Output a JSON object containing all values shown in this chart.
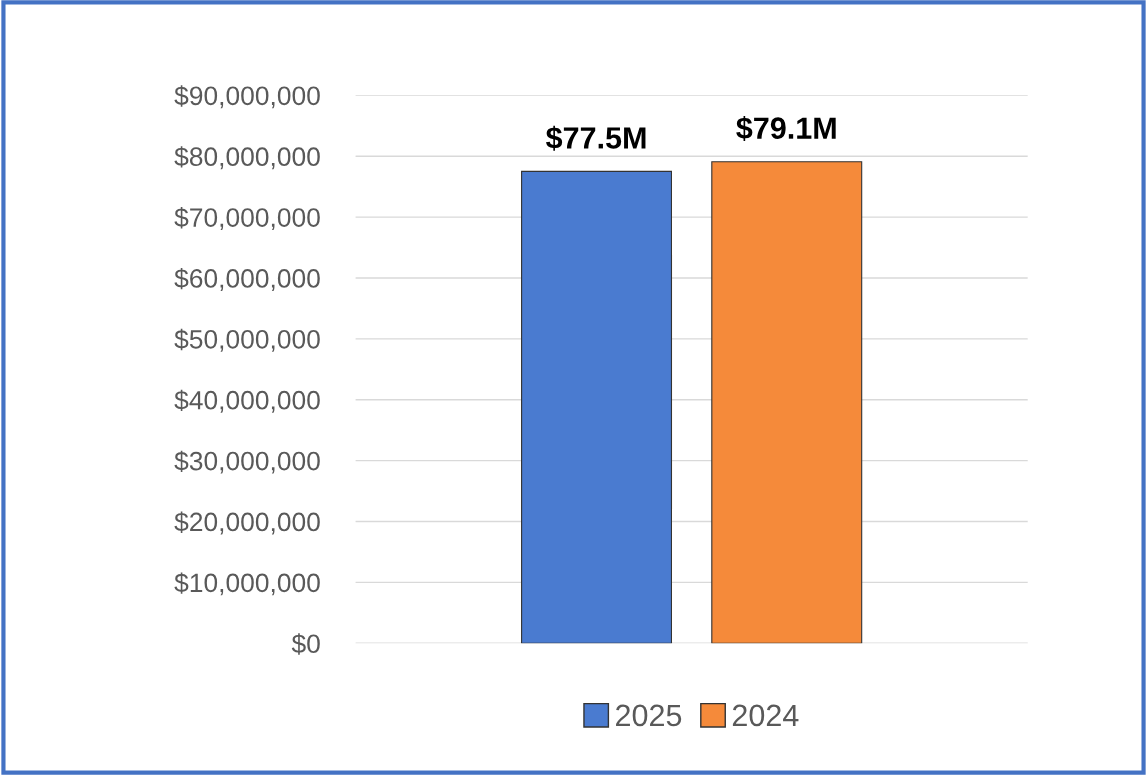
{
  "chart_data": {
    "type": "bar",
    "categories": [
      null
    ],
    "series": [
      {
        "name": "2025",
        "color": "#4a7bd0",
        "values": [
          77500000
        ],
        "value_labels": [
          "$77.5M"
        ]
      },
      {
        "name": "2024",
        "color": "#f58a3a",
        "values": [
          79100000
        ],
        "value_labels": [
          "$79.1M"
        ]
      }
    ],
    "ylim": [
      0,
      90000000
    ],
    "yticks": [
      {
        "value": 0,
        "label": "$0"
      },
      {
        "value": 10000000,
        "label": "$10,000,000"
      },
      {
        "value": 20000000,
        "label": "$20,000,000"
      },
      {
        "value": 30000000,
        "label": "$30,000,000"
      },
      {
        "value": 40000000,
        "label": "$40,000,000"
      },
      {
        "value": 50000000,
        "label": "$50,000,000"
      },
      {
        "value": 60000000,
        "label": "$60,000,000"
      },
      {
        "value": 70000000,
        "label": "$70,000,000"
      },
      {
        "value": 80000000,
        "label": "$80,000,000"
      },
      {
        "value": 90000000,
        "label": "$90,000,000"
      }
    ],
    "grid": "y",
    "legend": "bottom"
  }
}
